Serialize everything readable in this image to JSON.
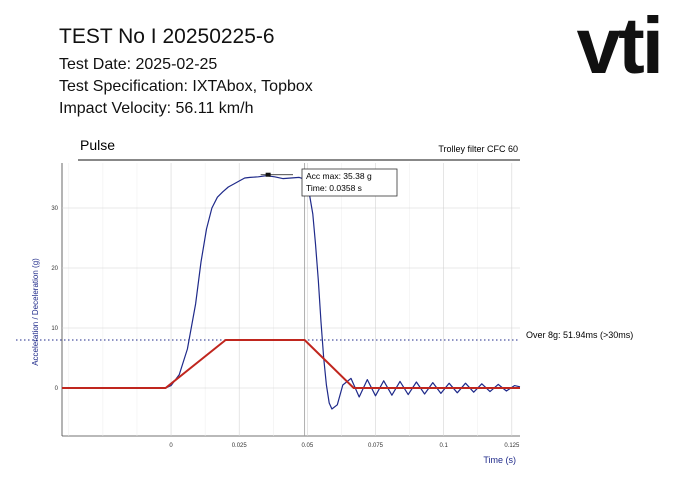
{
  "header": {
    "title": "TEST    No I 20250225-6",
    "test_date": "Test Date: 2025-02-25",
    "test_spec": "Test Specification: IXTAbox, Topbox",
    "impact_velocity": "Impact Velocity:  56.11 km/h"
  },
  "logo_text": "vti",
  "chart_data": {
    "type": "line",
    "title": "Pulse",
    "filter_label": "Trolley filter CFC 60",
    "xlabel": "Time (s)",
    "ylabel": "Acceleration / Deceleration (g)",
    "xlim": [
      -0.04,
      0.128
    ],
    "ylim": [
      -8,
      37.5
    ],
    "x_ticks": [
      0,
      0.025,
      0.05,
      0.075,
      0.1,
      0.125
    ],
    "x_tick_labels": [
      "0",
      "0.025",
      "0.05",
      "0.075",
      "0.1",
      "0.125"
    ],
    "y_ticks": [
      0,
      10,
      20,
      30
    ],
    "y_tick_labels": [
      "0",
      "10",
      "20",
      "30"
    ],
    "threshold": {
      "value": 8,
      "label": "Over 8g: 51.94ms (>30ms)"
    },
    "annotation": {
      "line1": "Acc max: 35.38 g",
      "line2": "Time: 0.0358 s",
      "x": 0.0358,
      "y": 35.38
    },
    "cursor_x": 0.049,
    "series": [
      {
        "color": "#1f2a8a",
        "x": [
          -0.04,
          -0.002,
          0.0,
          0.003,
          0.006,
          0.009,
          0.011,
          0.013,
          0.015,
          0.017,
          0.019,
          0.021,
          0.023,
          0.025,
          0.027,
          0.029,
          0.032,
          0.035,
          0.038,
          0.041,
          0.044,
          0.047,
          0.049,
          0.0505,
          0.052,
          0.053,
          0.054,
          0.055,
          0.056,
          0.057,
          0.058,
          0.059,
          0.061,
          0.063,
          0.066,
          0.069,
          0.072,
          0.075,
          0.078,
          0.081,
          0.084,
          0.087,
          0.09,
          0.093,
          0.096,
          0.099,
          0.102,
          0.105,
          0.108,
          0.111,
          0.114,
          0.117,
          0.12,
          0.123,
          0.126,
          0.128
        ],
        "values": [
          0,
          0,
          0.4,
          2.2,
          6.5,
          14,
          21,
          26.5,
          30,
          31.8,
          32.7,
          33.5,
          34.0,
          34.5,
          35.0,
          35.1,
          35.2,
          35.38,
          35.2,
          34.9,
          35.0,
          35.1,
          34.8,
          33.0,
          29.0,
          24.0,
          18.0,
          11.0,
          5.0,
          0.5,
          -2.5,
          -3.5,
          -2.8,
          0.5,
          1.6,
          -1.5,
          1.4,
          -1.3,
          1.2,
          -1.2,
          1.1,
          -1.1,
          1.0,
          -1.0,
          0.9,
          -0.9,
          0.8,
          -0.8,
          0.8,
          -0.7,
          0.7,
          -0.6,
          0.6,
          -0.5,
          0.4,
          0.2
        ]
      },
      {
        "color": "#c0261e",
        "x": [
          -0.04,
          -0.002,
          0.02,
          0.049,
          0.067,
          0.128
        ],
        "values": [
          0,
          0,
          8,
          8,
          0,
          0
        ]
      }
    ]
  }
}
